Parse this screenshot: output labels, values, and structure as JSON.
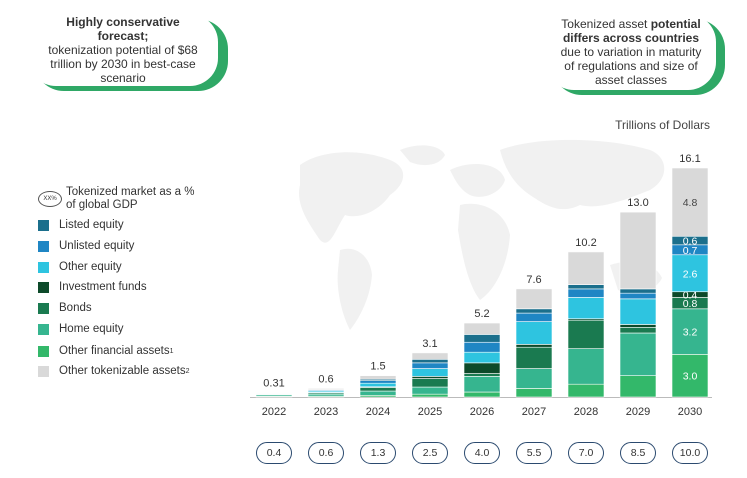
{
  "callouts": {
    "left": {
      "bold": "Highly conservative forecast;",
      "text": "tokenization potential of $68 trillion by 2030 in best-case scenario"
    },
    "right": {
      "text1": "Tokenized asset ",
      "bold": "potential differs across countries",
      "text2": " due to variation in maturity of regulations and size of asset classes"
    }
  },
  "legend": {
    "gdp_symbol": "XX%",
    "gdp_label": "Tokenized market as a % of global GDP",
    "items": [
      {
        "label": "Listed equity",
        "color": "#1b6f8c"
      },
      {
        "label": "Unlisted equity",
        "color": "#1f86c4"
      },
      {
        "label": "Other equity",
        "color": "#2ec4e0"
      },
      {
        "label": "Investment funds",
        "color": "#0d4a2a"
      },
      {
        "label": "Bonds",
        "color": "#1a7a50"
      },
      {
        "label": "Home equity",
        "color": "#36b58f"
      },
      {
        "label": "Other financial assets",
        "sup": "1",
        "color": "#33b86a"
      },
      {
        "label": "Other tokenizable assets",
        "sup": "2",
        "color": "#d9d9d9"
      }
    ]
  },
  "chart_data": {
    "type": "bar",
    "stacked": true,
    "unit_label": "Trillions of Dollars",
    "categories": [
      "2022",
      "2023",
      "2024",
      "2025",
      "2026",
      "2027",
      "2028",
      "2029",
      "2030"
    ],
    "totals": [
      "0.31",
      "0.6",
      "1.5",
      "3.1",
      "5.2",
      "7.6",
      "10.2",
      "13.0",
      "16.1"
    ],
    "total_values": [
      0.31,
      0.6,
      1.5,
      3.1,
      5.2,
      7.6,
      10.2,
      13.0,
      16.1
    ],
    "series": [
      {
        "name": "Other financial assets",
        "color": "#33b86a",
        "values": [
          0.05,
          0.06,
          0.12,
          0.2,
          0.35,
          0.6,
          0.9,
          1.5,
          3.0
        ]
      },
      {
        "name": "Home equity",
        "color": "#36b58f",
        "values": [
          0.1,
          0.14,
          0.3,
          0.5,
          1.1,
          1.4,
          2.5,
          3.0,
          3.2
        ]
      },
      {
        "name": "Bonds",
        "color": "#1a7a50",
        "values": [
          0.04,
          0.1,
          0.25,
          0.6,
          0.2,
          1.5,
          2.0,
          0.4,
          0.8
        ]
      },
      {
        "name": "Investment funds",
        "color": "#0d4a2a",
        "values": [
          0.01,
          0.02,
          0.05,
          0.15,
          0.75,
          0.2,
          0.1,
          0.2,
          0.4
        ]
      },
      {
        "name": "Other equity",
        "color": "#2ec4e0",
        "values": [
          0.04,
          0.1,
          0.25,
          0.55,
          0.75,
          1.6,
          1.5,
          1.8,
          2.6
        ]
      },
      {
        "name": "Unlisted equity",
        "color": "#1f86c4",
        "values": [
          0.02,
          0.06,
          0.18,
          0.4,
          0.7,
          0.6,
          0.6,
          0.4,
          0.7
        ]
      },
      {
        "name": "Listed equity",
        "color": "#1b6f8c",
        "values": [
          0.02,
          0.04,
          0.1,
          0.25,
          0.55,
          0.3,
          0.3,
          0.3,
          0.6
        ]
      },
      {
        "name": "Other tokenizable assets",
        "color": "#d9d9d9",
        "values": [
          0.03,
          0.08,
          0.25,
          0.45,
          0.8,
          1.4,
          2.3,
          5.4,
          4.8
        ]
      }
    ],
    "segment_labels_2030": [
      {
        "series": "Other financial assets",
        "text": "3.0"
      },
      {
        "series": "Home equity",
        "text": "3.2"
      },
      {
        "series": "Bonds",
        "text": "0.8"
      },
      {
        "series": "Investment funds",
        "text": "0.4"
      },
      {
        "series": "Other equity",
        "text": "2.6"
      },
      {
        "series": "Unlisted equity",
        "text": "0.7"
      },
      {
        "series": "Listed equity",
        "text": "0.6"
      },
      {
        "series": "Other tokenizable assets",
        "text": "4.8"
      }
    ],
    "gdp_percent": [
      "0.4",
      "0.6",
      "1.3",
      "2.5",
      "4.0",
      "5.5",
      "7.0",
      "8.5",
      "10.0"
    ],
    "ylim": [
      0,
      16.1
    ]
  }
}
